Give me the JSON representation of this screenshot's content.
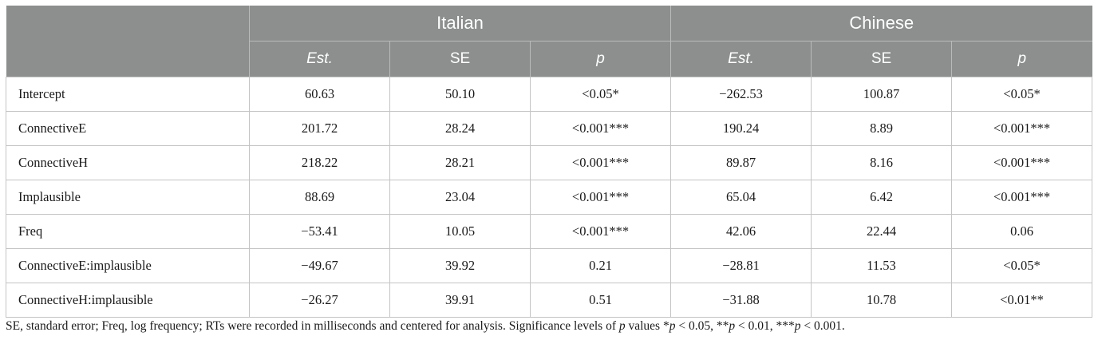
{
  "table": {
    "groups": [
      "Italian",
      "Chinese"
    ],
    "subheaders": [
      "Est.",
      "SE",
      "p",
      "Est.",
      "SE",
      "p"
    ],
    "rows": [
      {
        "label": "Intercept",
        "cells": [
          "60.63",
          "50.10",
          "<0.05*",
          "−262.53",
          "100.87",
          "<0.05*"
        ]
      },
      {
        "label": "ConnectiveE",
        "cells": [
          "201.72",
          "28.24",
          "<0.001***",
          "190.24",
          "8.89",
          "<0.001***"
        ]
      },
      {
        "label": "ConnectiveH",
        "cells": [
          "218.22",
          "28.21",
          "<0.001***",
          "89.87",
          "8.16",
          "<0.001***"
        ]
      },
      {
        "label": "Implausible",
        "cells": [
          "88.69",
          "23.04",
          "<0.001***",
          "65.04",
          "6.42",
          "<0.001***"
        ]
      },
      {
        "label": "Freq",
        "cells": [
          "−53.41",
          "10.05",
          "<0.001***",
          "42.06",
          "22.44",
          "0.06"
        ]
      },
      {
        "label": "ConnectiveE:implausible",
        "cells": [
          "−49.67",
          "39.92",
          "0.21",
          "−28.81",
          "11.53",
          "<0.05*"
        ]
      },
      {
        "label": "ConnectiveH:implausible",
        "cells": [
          "−26.27",
          "39.91",
          "0.51",
          "−31.88",
          "10.78",
          "<0.01**"
        ]
      }
    ]
  },
  "footnote": {
    "part1": "SE, standard error; Freq, log frequency; RTs were recorded in milliseconds and centered for analysis. Significance levels of ",
    "p_symbol": "p",
    "part2": " values *",
    "part3": " < 0.05, **",
    "part4": " < 0.01, ***",
    "part5": " < 0.001."
  }
}
